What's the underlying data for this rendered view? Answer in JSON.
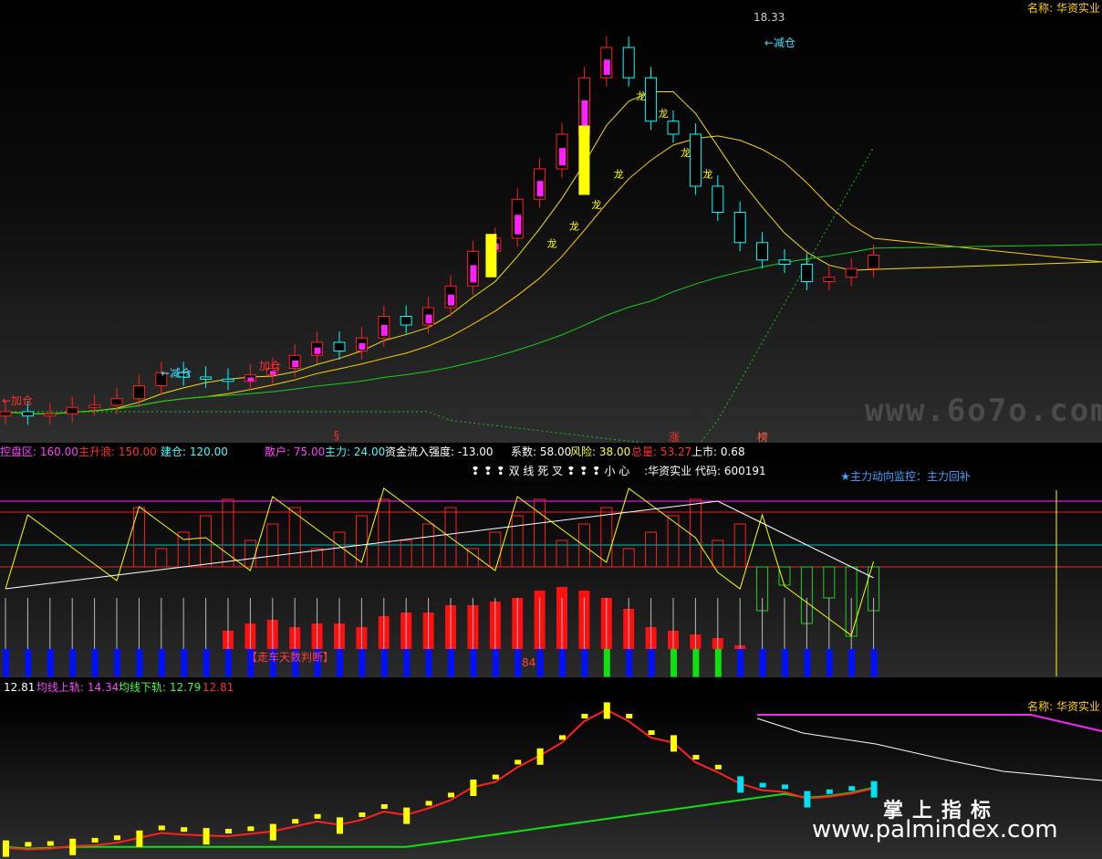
{
  "panel1": {
    "name_label": "名称: 华资实业",
    "high_label": "18.33",
    "annotations": [
      "←加仓",
      "←减仓",
      "←减仓",
      "加仓"
    ],
    "dragon": "龙",
    "markers": [
      "§",
      "涨",
      "榜"
    ],
    "colors": {
      "up": "#ff2020",
      "down": "#00ffff",
      "ma_short": "#f0e010",
      "ma_mid": "#ffd000",
      "ma_long": "#18d018",
      "band": "#18c018",
      "magenta": "#ff20ff",
      "yellow": "#ffff00"
    }
  },
  "info_bar": {
    "items": [
      {
        "label": "控盘区: ",
        "value": "160.00",
        "color": "#ff40ff"
      },
      {
        "label": "主升浪: ",
        "value": "150.00",
        "color": "#ff3030"
      },
      {
        "label": "建仓: ",
        "value": "120.00",
        "color": "#40ffff"
      },
      {
        "label": "散户: ",
        "value": "75.00",
        "color": "#ff40ff"
      },
      {
        "label": "主力: ",
        "value": "24.00",
        "color": "#40ffff"
      },
      {
        "label": "资金流入强度: ",
        "value": "-13.00",
        "color": "#ffffff"
      },
      {
        "label": "系数: ",
        "value": "58.00",
        "color": "#ffffff"
      },
      {
        "label": "风险: ",
        "value": "38.00",
        "color": "#ffff40"
      },
      {
        "label": "总量: ",
        "value": "53.27",
        "color": "#ff3030"
      },
      {
        "label": "上市: ",
        "value": "0.68",
        "color": "#ffffff"
      }
    ]
  },
  "panel2": {
    "header": "❢ ❢ ❢ 双 线 死 叉 ❢ ❢ ❢ 小 心　 :华资实业 代码: 600191",
    "monitor": "★主力动向监控：主力回补",
    "label_tag": "【走车天数判断】",
    "label_num": "84"
  },
  "panel3_bar": {
    "items": [
      {
        "label": "",
        "value": "12.81",
        "color": "#ffffff"
      },
      {
        "label": "均线上轨: ",
        "value": "14.34",
        "color": "#ff40ff"
      },
      {
        "label": "均线下轨: ",
        "value": "12.79",
        "color": "#40ff40"
      },
      {
        "label": ": ",
        "value": "12.81",
        "color": "#ff3030"
      }
    ]
  },
  "panel3": {
    "name_label": "名称: 华资实业"
  },
  "watermark": {
    "site1": "www.6o7o.com",
    "cn": "掌上指标",
    "site2": "www.palmindex.com"
  },
  "chart_data": [
    {
      "type": "candlestick",
      "title": "",
      "series": [
        {
          "name": "close",
          "values": [
            9.2,
            9.1,
            9.15,
            9.3,
            9.35,
            9.5,
            9.8,
            10.1,
            10.0,
            9.95,
            9.9,
            10.05,
            10.2,
            10.5,
            10.8,
            10.6,
            10.9,
            11.4,
            11.2,
            11.6,
            12.1,
            12.9,
            13.2,
            14.1,
            14.8,
            15.6,
            16.9,
            17.6,
            16.9,
            15.9,
            15.6,
            14.4,
            13.8,
            13.1,
            12.7,
            12.6,
            12.2,
            12.3,
            12.5,
            12.81
          ]
        }
      ],
      "price_labels": {
        "high": "18.33"
      }
    },
    {
      "type": "bar",
      "title": "",
      "series": [
        {
          "name": "red",
          "values": [
            0,
            0,
            0,
            0,
            0,
            0,
            0,
            0,
            0,
            0,
            5,
            7,
            8,
            6,
            7,
            7,
            6,
            9,
            10,
            10,
            12,
            12,
            13,
            14,
            16,
            17,
            16,
            14,
            11,
            6,
            5,
            4,
            3,
            1,
            0,
            0,
            0,
            0,
            0,
            0
          ]
        },
        {
          "name": "blue",
          "values": [
            9,
            9,
            9,
            9,
            9,
            9,
            9,
            9,
            9,
            9,
            9,
            9,
            9,
            9,
            9,
            9,
            9,
            9,
            9,
            9,
            9,
            9,
            9,
            9,
            9,
            9,
            9,
            9,
            9,
            9,
            9,
            9,
            9,
            9,
            9,
            9,
            9,
            9,
            9,
            9
          ]
        }
      ]
    },
    {
      "type": "line",
      "title": "",
      "series": [
        {
          "name": "均线上轨",
          "values": [
            14.34
          ]
        },
        {
          "name": "均线下轨",
          "values": [
            12.79
          ]
        }
      ]
    }
  ]
}
